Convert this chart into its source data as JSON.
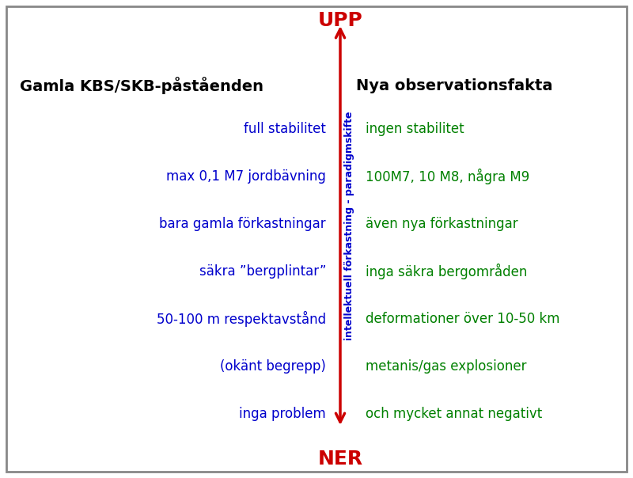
{
  "title_left": "Gamla KBS/SKB-påståenden",
  "title_right": "Nya observationsfakta",
  "left_items": [
    "full stabilitet",
    "max 0,1 M7 jordbävning",
    "bara gamla förkastningar",
    "säkra ”bergplintar”",
    "50-100 m respektavstånd",
    "(okänt begrepp)",
    "inga problem"
  ],
  "right_items": [
    "ingen stabilitet",
    "100M7, 10 M8, några M9",
    "även nya förkastningar",
    "inga säkra bergområden",
    "deformationer över 10-50 km",
    "metanis/gas explosioner",
    "och mycket annat negativt"
  ],
  "arrow_label": "intellektuell förkastning - paradigmskifte",
  "upp_label": "UPP",
  "ner_label": "NER",
  "left_color": "#0000cc",
  "right_color": "#008000",
  "title_color": "#000000",
  "arrow_color": "#cc0000",
  "label_color": "#cc0000",
  "background_color": "#ffffff",
  "border_color": "#888888"
}
